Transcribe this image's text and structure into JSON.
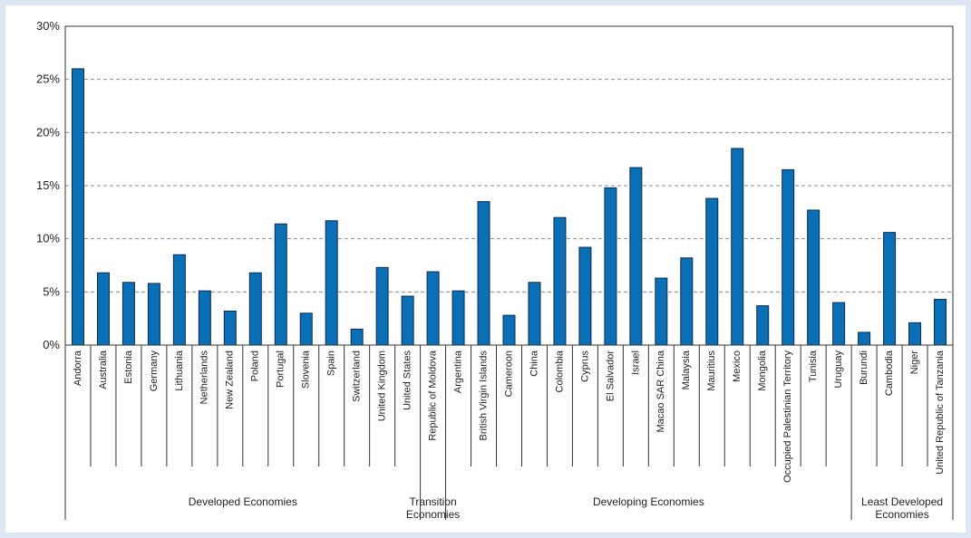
{
  "chart_data": {
    "type": "bar",
    "title": "",
    "xlabel": "",
    "ylabel": "",
    "ylim": [
      0,
      30
    ],
    "yticks": [
      "0%",
      "5%",
      "10%",
      "15%",
      "20%",
      "25%",
      "30%"
    ],
    "grid": true,
    "bar_color": "#0a6fb4",
    "categories": [
      "Andorra",
      "Australia",
      "Estonia",
      "Germany",
      "Lithuania",
      "Netherlands",
      "New Zealand",
      "Poland",
      "Portugal",
      "Slovenia",
      "Spain",
      "Switzerland",
      "United Kingdom",
      "United States",
      "Republic of Moldova",
      "Argentina",
      "British Virgin Islands",
      "Cameroon",
      "China",
      "Colombia",
      "Cyprus",
      "El Salvador",
      "Israel",
      "Macao SAR China",
      "Malaysia",
      "Mauritius",
      "Mexico",
      "Mongolia",
      "Occupied Palestinian Territory",
      "Tunisia",
      "Uruguay",
      "Burundi",
      "Cambodia",
      "Niger",
      "United Republic of Tanzania"
    ],
    "values": [
      26.0,
      6.8,
      5.9,
      5.8,
      8.5,
      5.1,
      3.2,
      6.8,
      11.4,
      3.0,
      11.7,
      1.5,
      7.3,
      4.6,
      6.9,
      5.1,
      13.5,
      2.8,
      5.9,
      12.0,
      9.2,
      14.8,
      16.7,
      6.3,
      8.2,
      13.8,
      18.5,
      3.7,
      16.5,
      12.7,
      4.0,
      1.2,
      10.6,
      2.1,
      4.3
    ],
    "groups": [
      {
        "label_lines": [
          "Developed Economies"
        ],
        "start": 0,
        "end": 13
      },
      {
        "label_lines": [
          "Transition",
          "Economies"
        ],
        "start": 14,
        "end": 14
      },
      {
        "label_lines": [
          "Developing Economies"
        ],
        "start": 15,
        "end": 30
      },
      {
        "label_lines": [
          "Least Developed",
          "Economies"
        ],
        "start": 31,
        "end": 34
      }
    ]
  }
}
